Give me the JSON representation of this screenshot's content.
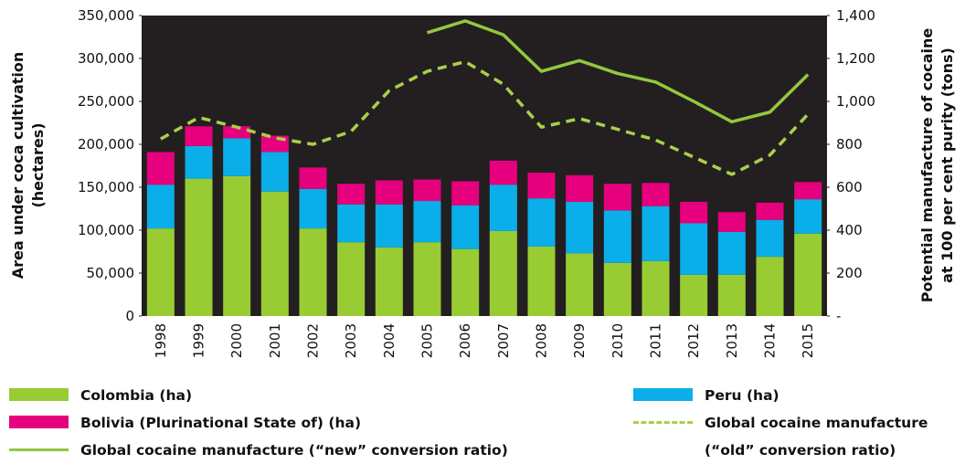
{
  "chart_data": {
    "type": "bar",
    "y_label": [
      "Area under coca cultivation",
      "(hectares)"
    ],
    "y2_label": [
      "Potential manufacture of cocaine",
      "at 100 per cent purity (tons)"
    ],
    "categories": [
      "1998",
      "1999",
      "2000",
      "2001",
      "2002",
      "2003",
      "2004",
      "2005",
      "2006",
      "2007",
      "2008",
      "2009",
      "2010",
      "2011",
      "2012",
      "2013",
      "2014",
      "2015"
    ],
    "series": [
      {
        "name": "Colombia (ha)",
        "kind": "bar",
        "color": "#99cc33",
        "values": [
          102000,
          160000,
          163000,
          145000,
          102000,
          86000,
          80000,
          86000,
          78000,
          99000,
          81000,
          73000,
          62000,
          64000,
          48000,
          48000,
          69000,
          96000
        ]
      },
      {
        "name": "Peru (ha)",
        "kind": "bar",
        "color": "#0aaee8",
        "values": [
          51000,
          38000,
          44000,
          46000,
          46000,
          44000,
          50000,
          48000,
          51000,
          54000,
          56000,
          60000,
          61000,
          64000,
          60000,
          50000,
          43000,
          40000
        ]
      },
      {
        "name": "Bolivia (Plurinational State of) (ha)",
        "kind": "bar",
        "color": "#e6007e",
        "values": [
          38000,
          23000,
          14000,
          19000,
          25000,
          24000,
          28000,
          25000,
          28000,
          28000,
          30000,
          31000,
          31000,
          27000,
          25000,
          23000,
          20000,
          20000
        ]
      },
      {
        "name": "Global cocaine manufacture (“old” conversion ratio)",
        "kind": "line",
        "axis": "y2",
        "dash": true,
        "color": "#a8d04a",
        "values": [
          825,
          925,
          880,
          830,
          800,
          860,
          1050,
          1140,
          1185,
          1080,
          880,
          920,
          870,
          820,
          740,
          660,
          750,
          940
        ]
      },
      {
        "name": "Global cocaine manufacture (“new” conversion ratio)",
        "kind": "line",
        "axis": "y2",
        "dash": false,
        "color": "#92c83e",
        "values": [
          null,
          null,
          null,
          null,
          null,
          null,
          null,
          1320,
          1375,
          1310,
          1140,
          1190,
          1130,
          1090,
          1000,
          905,
          950,
          1125
        ]
      }
    ],
    "ylim": [
      0,
      350000
    ],
    "yticks": [
      0,
      {
        "value": 50000,
        "label": "50,000"
      },
      {
        "value": 100000,
        "label": "100,000"
      },
      {
        "value": 150000,
        "label": "150,000"
      },
      {
        "value": 200000,
        "label": "200,000"
      },
      {
        "value": 250000,
        "label": "250,000"
      },
      {
        "value": 300000,
        "label": "300,000"
      },
      {
        "value": 350000,
        "label": "350,000"
      }
    ],
    "y2lim": [
      0,
      1400
    ],
    "y2ticks": [
      {
        "value": 0,
        "label": "-"
      },
      200,
      400,
      600,
      800,
      {
        "value": 1000,
        "label": "1,000"
      },
      {
        "value": 1200,
        "label": "1,200"
      },
      {
        "value": 1400,
        "label": "1,400"
      }
    ],
    "plot_background": "#231f20"
  }
}
